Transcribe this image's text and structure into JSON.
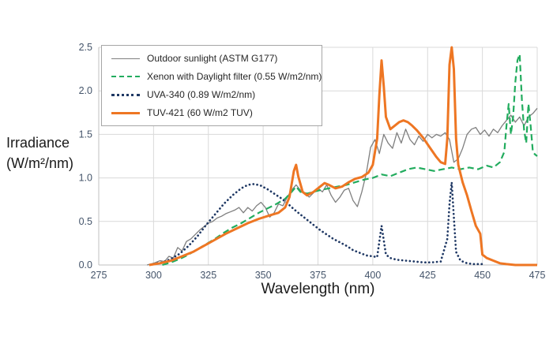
{
  "chart_data": {
    "type": "line",
    "title": "",
    "xlabel": "Wavelength (nm)",
    "ylabel": "Irradiance (W/m²/nm)",
    "ylabel_line1": "Irradiance",
    "ylabel_line2": "(W/m²/nm)",
    "xlim": [
      275,
      475
    ],
    "ylim": [
      0,
      2.5
    ],
    "xticks": [
      275,
      300,
      325,
      350,
      375,
      400,
      425,
      450,
      475
    ],
    "yticks": [
      0,
      0.5,
      1,
      1.5,
      2,
      2.5
    ],
    "ytick_labels": [
      "0.0",
      "0.5",
      "1.0",
      "1.5",
      "2.0",
      "2.5"
    ],
    "grid": true,
    "legend_position": "top-left",
    "grid_color": "#d9d9d9",
    "axis_line_color": "#bfbfbf",
    "axis_tick_color": "#44546a",
    "series": [
      {
        "name": "Outdoor sunlight (ASTM G177)",
        "color": "#7f7f7f",
        "width": 1.3,
        "line_style": "solid",
        "dash": "",
        "points": [
          [
            297,
            0
          ],
          [
            300,
            0.02
          ],
          [
            303,
            0.05
          ],
          [
            305,
            0.04
          ],
          [
            307,
            0.1
          ],
          [
            309,
            0.08
          ],
          [
            311,
            0.2
          ],
          [
            313,
            0.16
          ],
          [
            315,
            0.27
          ],
          [
            317,
            0.3
          ],
          [
            319,
            0.35
          ],
          [
            321,
            0.4
          ],
          [
            323,
            0.44
          ],
          [
            325,
            0.48
          ],
          [
            327,
            0.5
          ],
          [
            329,
            0.54
          ],
          [
            331,
            0.56
          ],
          [
            333,
            0.59
          ],
          [
            335,
            0.61
          ],
          [
            337,
            0.63
          ],
          [
            339,
            0.66
          ],
          [
            341,
            0.6
          ],
          [
            343,
            0.66
          ],
          [
            345,
            0.62
          ],
          [
            347,
            0.68
          ],
          [
            349,
            0.72
          ],
          [
            351,
            0.66
          ],
          [
            353,
            0.55
          ],
          [
            355,
            0.6
          ],
          [
            357,
            0.7
          ],
          [
            359,
            0.68
          ],
          [
            361,
            0.78
          ],
          [
            363,
            0.86
          ],
          [
            365,
            0.92
          ],
          [
            367,
            0.86
          ],
          [
            369,
            0.82
          ],
          [
            371,
            0.78
          ],
          [
            373,
            0.83
          ],
          [
            375,
            0.88
          ],
          [
            377,
            0.84
          ],
          [
            379,
            0.92
          ],
          [
            381,
            0.8
          ],
          [
            383,
            0.72
          ],
          [
            385,
            0.78
          ],
          [
            387,
            0.86
          ],
          [
            389,
            0.88
          ],
          [
            391,
            0.74
          ],
          [
            393,
            0.67
          ],
          [
            395,
            0.84
          ],
          [
            397,
            1.05
          ],
          [
            399,
            1.35
          ],
          [
            401,
            1.44
          ],
          [
            403,
            1.28
          ],
          [
            405,
            1.5
          ],
          [
            407,
            1.4
          ],
          [
            409,
            1.34
          ],
          [
            411,
            1.52
          ],
          [
            413,
            1.4
          ],
          [
            415,
            1.56
          ],
          [
            417,
            1.44
          ],
          [
            419,
            1.38
          ],
          [
            421,
            1.48
          ],
          [
            423,
            1.42
          ],
          [
            425,
            1.5
          ],
          [
            427,
            1.46
          ],
          [
            429,
            1.5
          ],
          [
            431,
            1.48
          ],
          [
            433,
            1.52
          ],
          [
            435,
            1.44
          ],
          [
            437,
            1.18
          ],
          [
            439,
            1.22
          ],
          [
            441,
            1.34
          ],
          [
            443,
            1.5
          ],
          [
            445,
            1.56
          ],
          [
            447,
            1.58
          ],
          [
            449,
            1.5
          ],
          [
            451,
            1.55
          ],
          [
            453,
            1.48
          ],
          [
            455,
            1.56
          ],
          [
            457,
            1.52
          ],
          [
            459,
            1.6
          ],
          [
            461,
            1.66
          ],
          [
            463,
            1.72
          ],
          [
            465,
            1.64
          ],
          [
            467,
            1.7
          ],
          [
            469,
            1.6
          ],
          [
            471,
            1.7
          ],
          [
            473,
            1.74
          ],
          [
            475,
            1.8
          ]
        ]
      },
      {
        "name": "Xenon with Daylight filter (0.55 W/m2/nm)",
        "color": "#22ac5e",
        "width": 2.2,
        "line_style": "dashed",
        "dash": "8 4.5",
        "points": [
          [
            304,
            0
          ],
          [
            308,
            0.03
          ],
          [
            312,
            0.07
          ],
          [
            316,
            0.12
          ],
          [
            320,
            0.18
          ],
          [
            324,
            0.24
          ],
          [
            328,
            0.3
          ],
          [
            332,
            0.37
          ],
          [
            336,
            0.43
          ],
          [
            340,
            0.48
          ],
          [
            344,
            0.54
          ],
          [
            348,
            0.6
          ],
          [
            352,
            0.65
          ],
          [
            356,
            0.7
          ],
          [
            360,
            0.76
          ],
          [
            363,
            0.84
          ],
          [
            365,
            0.9
          ],
          [
            367,
            0.84
          ],
          [
            370,
            0.82
          ],
          [
            373,
            0.84
          ],
          [
            376,
            0.86
          ],
          [
            380,
            0.88
          ],
          [
            384,
            0.9
          ],
          [
            388,
            0.92
          ],
          [
            392,
            0.95
          ],
          [
            396,
            0.98
          ],
          [
            400,
            1.0
          ],
          [
            404,
            1.04
          ],
          [
            408,
            1.02
          ],
          [
            412,
            1.06
          ],
          [
            416,
            1.1
          ],
          [
            420,
            1.12
          ],
          [
            424,
            1.1
          ],
          [
            428,
            1.08
          ],
          [
            432,
            1.1
          ],
          [
            436,
            1.12
          ],
          [
            440,
            1.1
          ],
          [
            444,
            1.12
          ],
          [
            448,
            1.1
          ],
          [
            452,
            1.14
          ],
          [
            455,
            1.12
          ],
          [
            458,
            1.18
          ],
          [
            460,
            1.3
          ],
          [
            461,
            1.6
          ],
          [
            462,
            1.85
          ],
          [
            463,
            1.5
          ],
          [
            464,
            1.7
          ],
          [
            465,
            2.1
          ],
          [
            466,
            2.35
          ],
          [
            467,
            2.42
          ],
          [
            468,
            1.9
          ],
          [
            469,
            1.55
          ],
          [
            470,
            1.4
          ],
          [
            471,
            1.85
          ],
          [
            472,
            1.6
          ],
          [
            473,
            1.3
          ],
          [
            474,
            1.27
          ],
          [
            475,
            1.25
          ]
        ]
      },
      {
        "name": "UVA-340 (0.89 W/m2/nm)",
        "color": "#1f3864",
        "width": 2.7,
        "line_style": "dotted",
        "dash": "0.1 4.8",
        "points": [
          [
            300,
            0.01
          ],
          [
            304,
            0.03
          ],
          [
            308,
            0.07
          ],
          [
            312,
            0.13
          ],
          [
            316,
            0.22
          ],
          [
            320,
            0.33
          ],
          [
            324,
            0.46
          ],
          [
            328,
            0.58
          ],
          [
            332,
            0.7
          ],
          [
            336,
            0.8
          ],
          [
            340,
            0.88
          ],
          [
            343,
            0.92
          ],
          [
            346,
            0.93
          ],
          [
            349,
            0.91
          ],
          [
            352,
            0.87
          ],
          [
            355,
            0.82
          ],
          [
            358,
            0.77
          ],
          [
            361,
            0.71
          ],
          [
            364,
            0.64
          ],
          [
            367,
            0.58
          ],
          [
            370,
            0.52
          ],
          [
            373,
            0.46
          ],
          [
            376,
            0.4
          ],
          [
            379,
            0.35
          ],
          [
            382,
            0.3
          ],
          [
            385,
            0.26
          ],
          [
            388,
            0.22
          ],
          [
            391,
            0.17
          ],
          [
            394,
            0.14
          ],
          [
            397,
            0.11
          ],
          [
            400,
            0.1
          ],
          [
            402,
            0.09
          ],
          [
            404,
            0.45
          ],
          [
            406,
            0.12
          ],
          [
            408,
            0.08
          ],
          [
            411,
            0.06
          ],
          [
            415,
            0.05
          ],
          [
            419,
            0.04
          ],
          [
            423,
            0.03
          ],
          [
            427,
            0.03
          ],
          [
            431,
            0.04
          ],
          [
            434,
            0.3
          ],
          [
            435,
            0.7
          ],
          [
            436,
            0.95
          ],
          [
            437,
            0.55
          ],
          [
            438,
            0.15
          ],
          [
            440,
            0.05
          ],
          [
            443,
            0.02
          ],
          [
            446,
            0.01
          ],
          [
            450,
            0.01
          ]
        ]
      },
      {
        "name": "TUV-421 (60 W/m2 TUV)",
        "color": "#ee7623",
        "width": 3,
        "line_style": "solid",
        "dash": "",
        "points": [
          [
            298,
            0
          ],
          [
            303,
            0.02
          ],
          [
            308,
            0.05
          ],
          [
            313,
            0.1
          ],
          [
            318,
            0.15
          ],
          [
            323,
            0.22
          ],
          [
            328,
            0.29
          ],
          [
            333,
            0.36
          ],
          [
            338,
            0.42
          ],
          [
            343,
            0.48
          ],
          [
            348,
            0.53
          ],
          [
            353,
            0.57
          ],
          [
            357,
            0.6
          ],
          [
            360,
            0.66
          ],
          [
            362,
            0.78
          ],
          [
            364,
            1.08
          ],
          [
            365,
            1.15
          ],
          [
            366,
            1.02
          ],
          [
            368,
            0.84
          ],
          [
            370,
            0.8
          ],
          [
            373,
            0.84
          ],
          [
            376,
            0.9
          ],
          [
            378,
            0.94
          ],
          [
            380,
            0.92
          ],
          [
            383,
            0.88
          ],
          [
            386,
            0.9
          ],
          [
            389,
            0.95
          ],
          [
            392,
            0.99
          ],
          [
            395,
            1.01
          ],
          [
            398,
            1.06
          ],
          [
            400,
            1.15
          ],
          [
            402,
            1.45
          ],
          [
            403,
            1.95
          ],
          [
            404,
            2.35
          ],
          [
            405,
            2.05
          ],
          [
            406,
            1.7
          ],
          [
            408,
            1.56
          ],
          [
            410,
            1.6
          ],
          [
            412,
            1.64
          ],
          [
            414,
            1.66
          ],
          [
            416,
            1.64
          ],
          [
            418,
            1.6
          ],
          [
            420,
            1.55
          ],
          [
            423,
            1.46
          ],
          [
            426,
            1.35
          ],
          [
            429,
            1.24
          ],
          [
            431,
            1.18
          ],
          [
            433,
            1.16
          ],
          [
            434,
            1.45
          ],
          [
            435,
            2.3
          ],
          [
            436,
            2.5
          ],
          [
            437,
            2.25
          ],
          [
            438,
            1.45
          ],
          [
            439,
            1.15
          ],
          [
            441,
            0.95
          ],
          [
            443,
            0.8
          ],
          [
            445,
            0.62
          ],
          [
            447,
            0.45
          ],
          [
            449,
            0.36
          ],
          [
            450,
            0.12
          ],
          [
            452,
            0.08
          ],
          [
            455,
            0.05
          ],
          [
            458,
            0.02
          ],
          [
            461,
            0.01
          ],
          [
            465,
            0
          ],
          [
            470,
            0
          ],
          [
            475,
            0
          ]
        ]
      }
    ]
  }
}
